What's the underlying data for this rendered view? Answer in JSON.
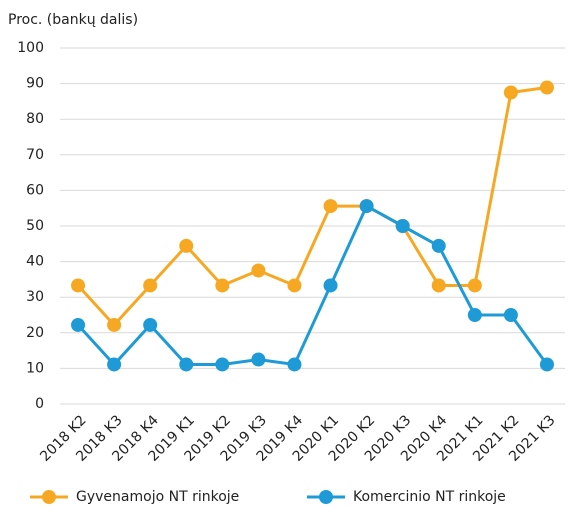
{
  "chart_data": {
    "type": "line",
    "y_label": "Proc. (bankų dalis)",
    "categories": [
      "2018 K2",
      "2018 K3",
      "2018 K4",
      "2019 K1",
      "2019 K2",
      "2019 K3",
      "2019 K4",
      "2020 K1",
      "2020 K2",
      "2020 K3",
      "2020 K4",
      "2021 K1",
      "2021 K2",
      "2021 K3"
    ],
    "series": [
      {
        "name": "Gyvenamojo NT rinkoje",
        "color": "#f7a823",
        "values": [
          33.3,
          22.2,
          33.3,
          44.4,
          33.3,
          37.5,
          33.3,
          55.6,
          55.6,
          50,
          33.3,
          33.3,
          87.5,
          88.9
        ]
      },
      {
        "name": "Komercinio NT rinkoje",
        "color": "#1e9bd7",
        "values": [
          22.2,
          11.1,
          22.2,
          11.1,
          11.1,
          12.5,
          11.1,
          33.3,
          55.6,
          50,
          44.4,
          25,
          25,
          11.1
        ]
      }
    ],
    "ylim": [
      0,
      100
    ],
    "yticks": [
      0,
      10,
      20,
      30,
      40,
      50,
      60,
      70,
      80,
      90,
      100
    ],
    "grid": true,
    "legend": "bottom"
  }
}
